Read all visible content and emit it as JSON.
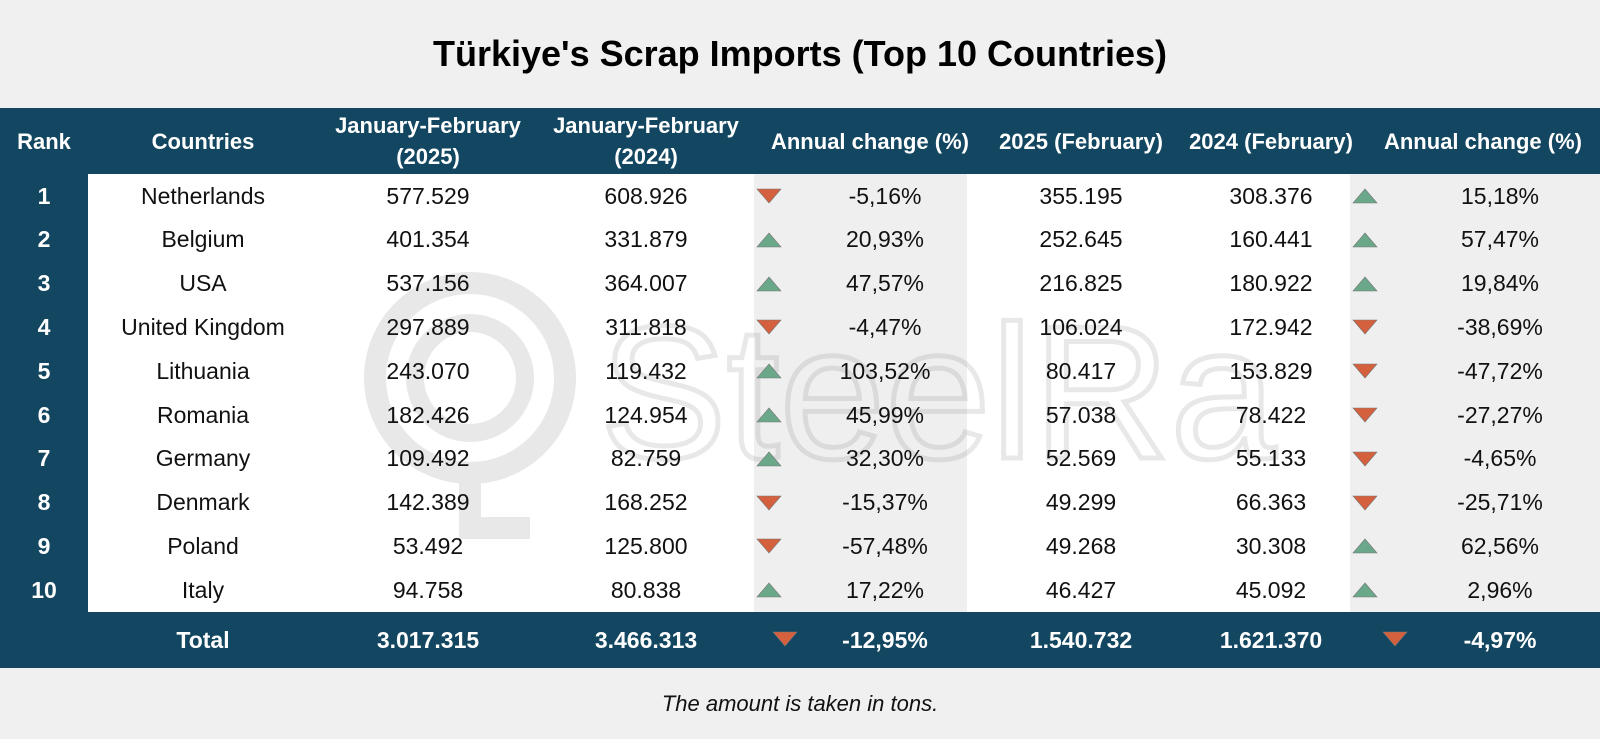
{
  "title": "Türkiye's Scrap Imports (Top 10 Countries)",
  "headers": {
    "rank": "Rank",
    "countries": "Countries",
    "jf2025_line1": "January-February",
    "jf2025_line2": "(2025)",
    "jf2024_line1": "January-February",
    "jf2024_line2": "(2024)",
    "annual_change_jf": "Annual change (%)",
    "feb2025": "2025 (February)",
    "feb2024": "2024 (February)",
    "annual_change_feb": "Annual change (%)"
  },
  "colors": {
    "header_bg": "#134660",
    "up_arrow": "#6aa889",
    "down_arrow": "#d4603d"
  },
  "chart_data": {
    "type": "table",
    "title": "Türkiye's Scrap Imports (Top 10 Countries)",
    "columns": [
      "Rank",
      "Countries",
      "January-February (2025)",
      "January-February (2024)",
      "Annual change (%)",
      "2025 (February)",
      "2024 (February)",
      "Annual change (%)"
    ],
    "rows": [
      {
        "rank": "1",
        "country": "Netherlands",
        "jf2025": "577.529",
        "jf2024": "608.926",
        "jf_change": "-5,16%",
        "jf_dir": "down",
        "feb2025": "355.195",
        "feb2024": "308.376",
        "feb_change": "15,18%",
        "feb_dir": "up"
      },
      {
        "rank": "2",
        "country": "Belgium",
        "jf2025": "401.354",
        "jf2024": "331.879",
        "jf_change": "20,93%",
        "jf_dir": "up",
        "feb2025": "252.645",
        "feb2024": "160.441",
        "feb_change": "57,47%",
        "feb_dir": "up"
      },
      {
        "rank": "3",
        "country": "USA",
        "jf2025": "537.156",
        "jf2024": "364.007",
        "jf_change": "47,57%",
        "jf_dir": "up",
        "feb2025": "216.825",
        "feb2024": "180.922",
        "feb_change": "19,84%",
        "feb_dir": "up"
      },
      {
        "rank": "4",
        "country": "United Kingdom",
        "jf2025": "297.889",
        "jf2024": "311.818",
        "jf_change": "-4,47%",
        "jf_dir": "down",
        "feb2025": "106.024",
        "feb2024": "172.942",
        "feb_change": "-38,69%",
        "feb_dir": "down"
      },
      {
        "rank": "5",
        "country": "Lithuania",
        "jf2025": "243.070",
        "jf2024": "119.432",
        "jf_change": "103,52%",
        "jf_dir": "up",
        "feb2025": "80.417",
        "feb2024": "153.829",
        "feb_change": "-47,72%",
        "feb_dir": "down"
      },
      {
        "rank": "6",
        "country": "Romania",
        "jf2025": "182.426",
        "jf2024": "124.954",
        "jf_change": "45,99%",
        "jf_dir": "up",
        "feb2025": "57.038",
        "feb2024": "78.422",
        "feb_change": "-27,27%",
        "feb_dir": "down"
      },
      {
        "rank": "7",
        "country": "Germany",
        "jf2025": "109.492",
        "jf2024": "82.759",
        "jf_change": "32,30%",
        "jf_dir": "up",
        "feb2025": "52.569",
        "feb2024": "55.133",
        "feb_change": "-4,65%",
        "feb_dir": "down"
      },
      {
        "rank": "8",
        "country": "Denmark",
        "jf2025": "142.389",
        "jf2024": "168.252",
        "jf_change": "-15,37%",
        "jf_dir": "down",
        "feb2025": "49.299",
        "feb2024": "66.363",
        "feb_change": "-25,71%",
        "feb_dir": "down"
      },
      {
        "rank": "9",
        "country": "Poland",
        "jf2025": "53.492",
        "jf2024": "125.800",
        "jf_change": "-57,48%",
        "jf_dir": "down",
        "feb2025": "49.268",
        "feb2024": "30.308",
        "feb_change": "62,56%",
        "feb_dir": "up"
      },
      {
        "rank": "10",
        "country": "Italy",
        "jf2025": "94.758",
        "jf2024": "80.838",
        "jf_change": "17,22%",
        "jf_dir": "up",
        "feb2025": "46.427",
        "feb2024": "45.092",
        "feb_change": "2,96%",
        "feb_dir": "up"
      }
    ],
    "total": {
      "label": "Total",
      "jf2025": "3.017.315",
      "jf2024": "3.466.313",
      "jf_change": "-12,95%",
      "jf_dir": "down",
      "feb2025": "1.540.732",
      "feb2024": "1.621.370",
      "feb_change": "-4,97%",
      "feb_dir": "down"
    }
  },
  "footnote": "The amount is taken in tons."
}
